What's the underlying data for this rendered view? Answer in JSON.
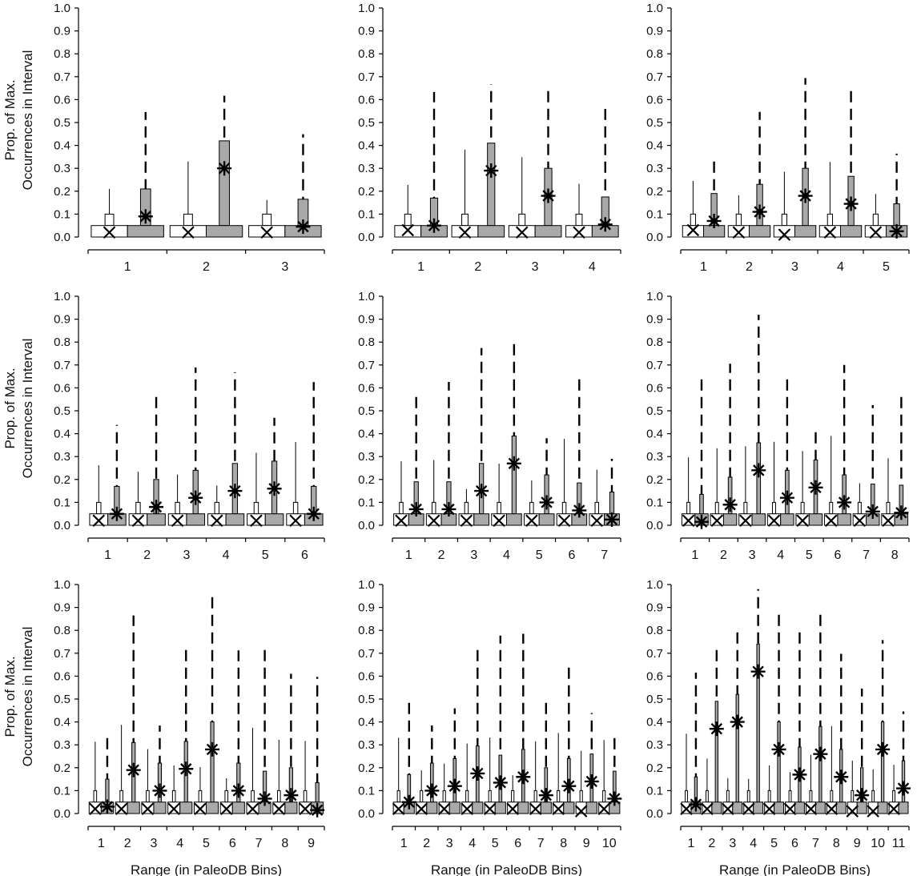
{
  "figure": {
    "ylabel_line1": "Prop. of Max.",
    "ylabel_line2": "Occurrences in Interval",
    "xlabel": "Range (in PaleoDB Bins)"
  },
  "yticks": [
    "0.0",
    "0.1",
    "0.2",
    "0.3",
    "0.4",
    "0.5",
    "0.6",
    "0.7",
    "0.8",
    "0.9",
    "1.0"
  ],
  "chart_data": [
    {
      "type": "box",
      "panel": 1,
      "xlabel": "",
      "ylim": [
        0,
        1
      ],
      "categories": [
        "1",
        "2",
        "3"
      ],
      "series": [
        {
          "name": "white",
          "markers": [
            0.02,
            0.02,
            0.02
          ]
        },
        {
          "name": "grey",
          "markers": [
            0.09,
            0.3,
            0.045
          ]
        }
      ]
    },
    {
      "type": "box",
      "panel": 2,
      "xlabel": "",
      "ylim": [
        0,
        1
      ],
      "categories": [
        "1",
        "2",
        "3",
        "4"
      ],
      "series": [
        {
          "name": "white",
          "markers": [
            0.03,
            0.02,
            0.02,
            0.02
          ]
        },
        {
          "name": "grey",
          "markers": [
            0.05,
            0.29,
            0.18,
            0.055
          ]
        }
      ]
    },
    {
      "type": "box",
      "panel": 3,
      "xlabel": "",
      "ylim": [
        0,
        1
      ],
      "categories": [
        "1",
        "2",
        "3",
        "4",
        "5"
      ],
      "series": [
        {
          "name": "white",
          "markers": [
            0.03,
            0.02,
            0.01,
            0.02,
            0.02
          ]
        },
        {
          "name": "grey",
          "markers": [
            0.07,
            0.11,
            0.18,
            0.145,
            0.025
          ]
        }
      ]
    },
    {
      "type": "box",
      "panel": 4,
      "xlabel": "",
      "ylim": [
        0,
        1
      ],
      "categories": [
        "1",
        "2",
        "3",
        "4",
        "5",
        "6"
      ],
      "series": [
        {
          "name": "white",
          "markers": [
            0.02,
            0.02,
            0.02,
            0.02,
            0.02,
            0.02
          ]
        },
        {
          "name": "grey",
          "markers": [
            0.05,
            0.08,
            0.12,
            0.15,
            0.16,
            0.05
          ]
        }
      ]
    },
    {
      "type": "box",
      "panel": 5,
      "xlabel": "",
      "ylim": [
        0,
        1
      ],
      "categories": [
        "1",
        "2",
        "3",
        "4",
        "5",
        "6",
        "7"
      ],
      "series": [
        {
          "name": "white",
          "markers": [
            0.02,
            0.02,
            0.02,
            0.02,
            0.02,
            0.02,
            0.02
          ]
        },
        {
          "name": "grey",
          "markers": [
            0.07,
            0.07,
            0.15,
            0.27,
            0.1,
            0.065,
            0.025
          ]
        }
      ]
    },
    {
      "type": "box",
      "panel": 6,
      "xlabel": "",
      "ylim": [
        0,
        1
      ],
      "categories": [
        "1",
        "2",
        "3",
        "4",
        "5",
        "6",
        "7",
        "8"
      ],
      "series": [
        {
          "name": "white",
          "markers": [
            0.02,
            0.02,
            0.02,
            0.02,
            0.02,
            0.02,
            0.02,
            0.02
          ]
        },
        {
          "name": "grey",
          "markers": [
            0.015,
            0.09,
            0.24,
            0.12,
            0.165,
            0.1,
            0.06,
            0.055
          ]
        }
      ]
    },
    {
      "type": "box",
      "panel": 7,
      "xlabel": "Range (in PaleoDB Bins)",
      "ylim": [
        0,
        1
      ],
      "categories": [
        "1",
        "2",
        "3",
        "4",
        "5",
        "6",
        "7",
        "8",
        "9"
      ],
      "series": [
        {
          "name": "white",
          "markers": [
            0.02,
            0.02,
            0.02,
            0.02,
            0.02,
            0.02,
            0.02,
            0.02,
            0.02
          ]
        },
        {
          "name": "grey",
          "markers": [
            0.03,
            0.19,
            0.1,
            0.195,
            0.28,
            0.1,
            0.065,
            0.08,
            0.015
          ]
        }
      ]
    },
    {
      "type": "box",
      "panel": 8,
      "xlabel": "Range (in PaleoDB Bins)",
      "ylim": [
        0,
        1
      ],
      "categories": [
        "1",
        "2",
        "3",
        "4",
        "5",
        "6",
        "7",
        "8",
        "9",
        "10"
      ],
      "series": [
        {
          "name": "white",
          "markers": [
            0.02,
            0.02,
            0.02,
            0.02,
            0.02,
            0.02,
            0.02,
            0.02,
            0.01,
            0.02
          ]
        },
        {
          "name": "grey",
          "markers": [
            0.05,
            0.1,
            0.12,
            0.175,
            0.135,
            0.16,
            0.08,
            0.12,
            0.14,
            0.065
          ]
        }
      ]
    },
    {
      "type": "box",
      "panel": 9,
      "xlabel": "Range (in PaleoDB Bins)",
      "ylim": [
        0,
        1
      ],
      "categories": [
        "1",
        "2",
        "3",
        "4",
        "5",
        "6",
        "7",
        "8",
        "9",
        "10",
        "11"
      ],
      "series": [
        {
          "name": "white",
          "markers": [
            0.02,
            0.02,
            0.02,
            0.02,
            0.02,
            0.02,
            0.02,
            0.02,
            0.01,
            0.01,
            0.02
          ]
        },
        {
          "name": "grey",
          "markers": [
            0.04,
            0.37,
            0.4,
            0.62,
            0.28,
            0.17,
            0.26,
            0.16,
            0.08,
            0.28,
            0.11
          ]
        }
      ]
    }
  ]
}
